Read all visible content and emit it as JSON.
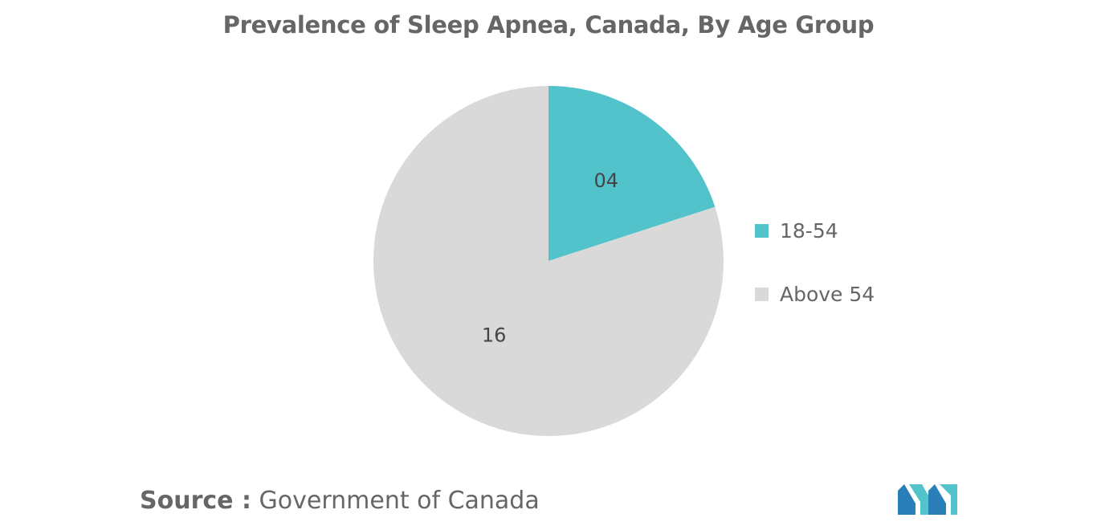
{
  "chart_data": {
    "type": "pie",
    "title": "Prevalence of Sleep Apnea, Canada, By Age Group",
    "slices": [
      {
        "name": "18-54",
        "value": 4,
        "label": "04",
        "color": "#52c3ca"
      },
      {
        "name": "Above 54",
        "value": 16,
        "label": "16",
        "color": "#d9d9d9"
      }
    ],
    "legend_position": "right"
  },
  "source": {
    "label": "Source :",
    "text": "Government of Canada"
  },
  "logo": {
    "icon": "mordor-intelligence-logo",
    "colors": [
      "#2b7fb8",
      "#52c3ca"
    ]
  }
}
